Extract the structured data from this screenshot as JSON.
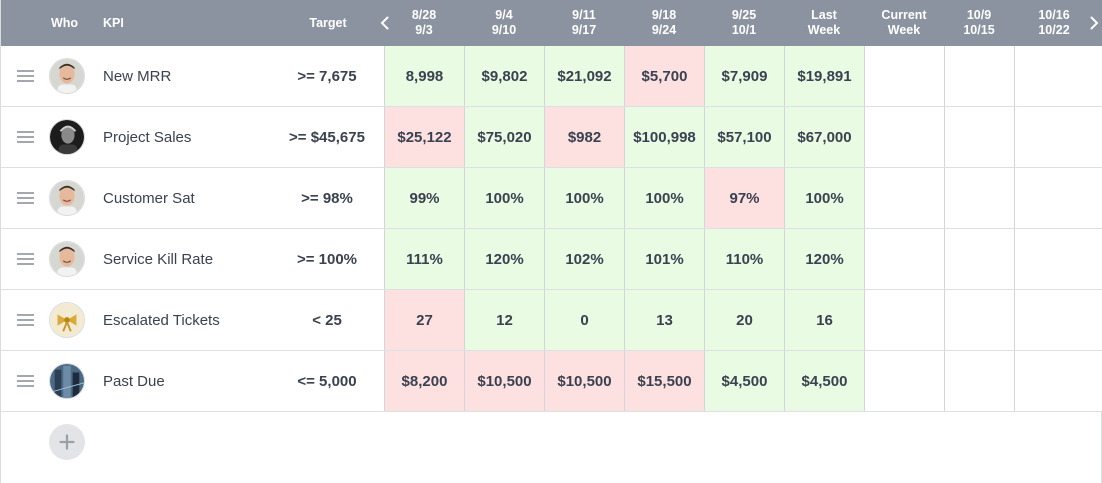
{
  "header": {
    "who": "Who",
    "kpi": "KPI",
    "target": "Target",
    "weeks": [
      {
        "line1": "8/28",
        "line2": "9/3"
      },
      {
        "line1": "9/4",
        "line2": "9/10"
      },
      {
        "line1": "9/11",
        "line2": "9/17"
      },
      {
        "line1": "9/18",
        "line2": "9/24"
      },
      {
        "line1": "9/25",
        "line2": "10/1"
      },
      {
        "line1": "Last",
        "line2": "Week"
      },
      {
        "line1": "Current",
        "line2": "Week"
      },
      {
        "line1": "10/9",
        "line2": "10/15"
      },
      {
        "line1": "10/16",
        "line2": "10/22"
      }
    ],
    "prev_icon": "chevron-left-icon",
    "next_icon": "chevron-right-icon"
  },
  "colors": {
    "header_bg": "#8b93a1",
    "good": "#e9fbe2",
    "bad": "#fde0e0"
  },
  "rows": [
    {
      "kpi": "New MRR",
      "target": ">= 7,675",
      "values": [
        "8,998",
        "$9,802",
        "$21,092",
        "$5,700",
        "$7,909",
        "$19,891",
        "",
        "",
        ""
      ],
      "status": [
        "good",
        "good",
        "good",
        "bad",
        "good",
        "good",
        "empty",
        "empty",
        "empty"
      ]
    },
    {
      "kpi": "Project Sales",
      "target": ">= $45,675",
      "values": [
        "$25,122",
        "$75,020",
        "$982",
        "$100,998",
        "$57,100",
        "$67,000",
        "",
        "",
        ""
      ],
      "status": [
        "bad",
        "good",
        "bad",
        "good",
        "good",
        "good",
        "empty",
        "empty",
        "empty"
      ]
    },
    {
      "kpi": "Customer Sat",
      "target": ">= 98%",
      "values": [
        "99%",
        "100%",
        "100%",
        "100%",
        "97%",
        "100%",
        "",
        "",
        ""
      ],
      "status": [
        "good",
        "good",
        "good",
        "good",
        "bad",
        "good",
        "empty",
        "empty",
        "empty"
      ]
    },
    {
      "kpi": "Service Kill Rate",
      "target": ">= 100%",
      "values": [
        "111%",
        "120%",
        "102%",
        "101%",
        "110%",
        "120%",
        "",
        "",
        ""
      ],
      "status": [
        "good",
        "good",
        "good",
        "good",
        "good",
        "good",
        "empty",
        "empty",
        "empty"
      ]
    },
    {
      "kpi": "Escalated Tickets",
      "target": "< 25",
      "values": [
        "27",
        "12",
        "0",
        "13",
        "20",
        "16",
        "",
        "",
        ""
      ],
      "status": [
        "bad",
        "good",
        "good",
        "good",
        "good",
        "good",
        "empty",
        "empty",
        "empty"
      ]
    },
    {
      "kpi": "Past Due",
      "target": "<= 5,000",
      "values": [
        "$8,200",
        "$10,500",
        "$10,500",
        "$15,500",
        "$4,500",
        "$4,500",
        "",
        "",
        ""
      ],
      "status": [
        "bad",
        "bad",
        "bad",
        "bad",
        "good",
        "good",
        "empty",
        "empty",
        "empty"
      ]
    }
  ],
  "add_icon": "plus-icon"
}
